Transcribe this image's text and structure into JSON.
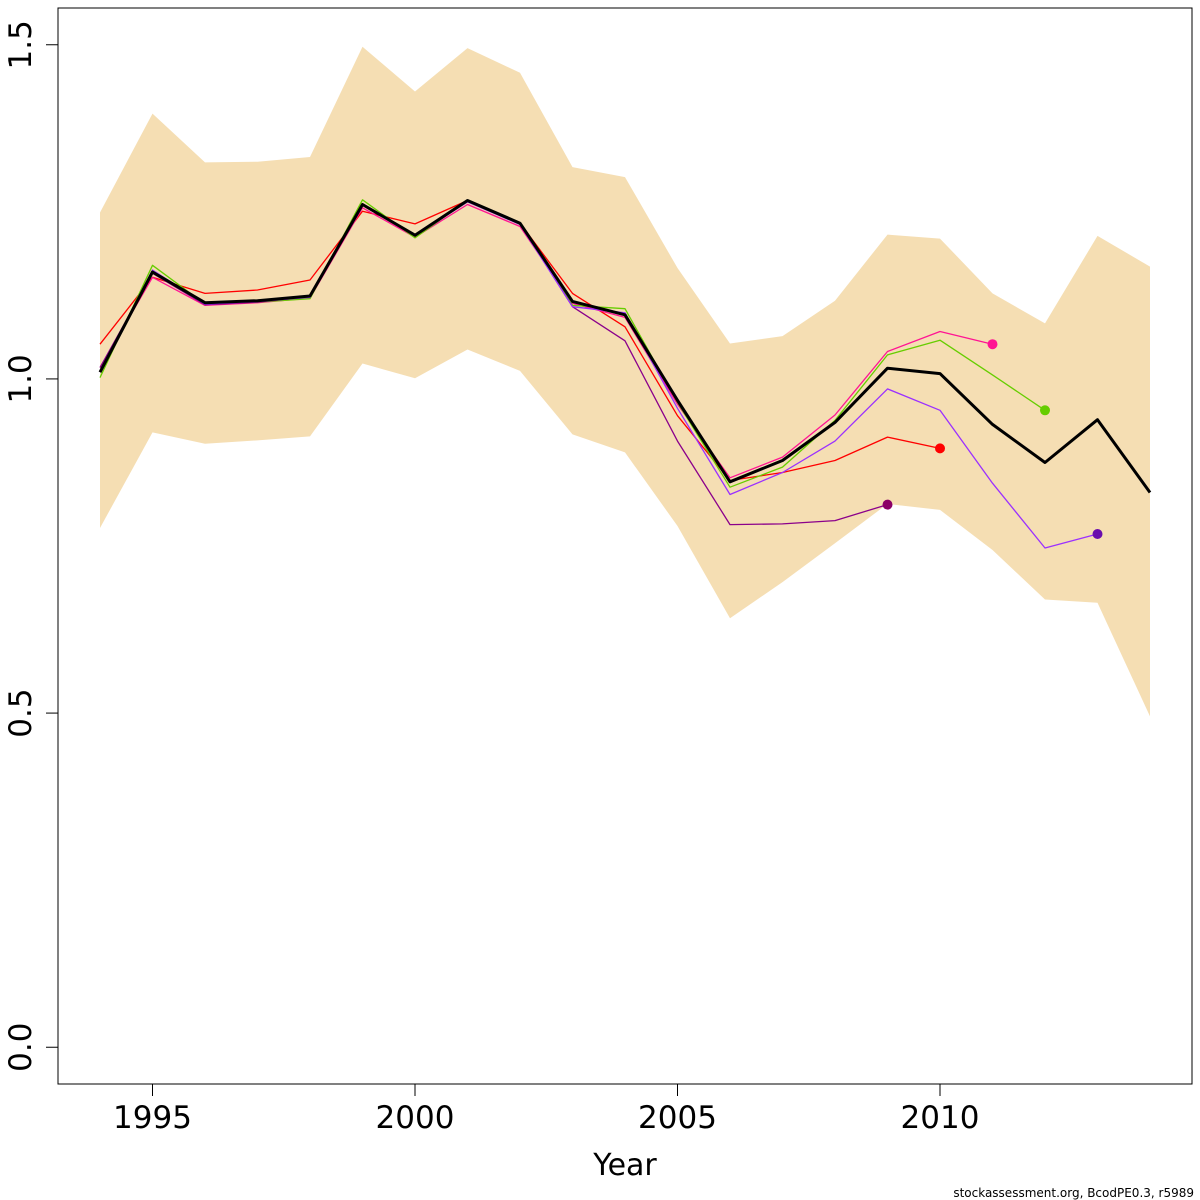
{
  "chart_data": {
    "type": "line",
    "xlabel": "Year",
    "ylabel": "",
    "xlim": [
      1993.2,
      2014.8
    ],
    "ylim": [
      -0.055,
      1.555
    ],
    "x_ticks": [
      1995,
      2000,
      2005,
      2010
    ],
    "x_tick_labels": [
      "1995",
      "2000",
      "2005",
      "2010"
    ],
    "y_ticks": [
      0,
      0.5,
      1,
      1.5
    ],
    "y_tick_labels": [
      "0.0",
      "0.5",
      "1.0",
      "1.5"
    ],
    "grid": false,
    "legend": "none",
    "band": {
      "color": "#F5DEB3",
      "x": [
        1994,
        1995,
        1996,
        1997,
        1998,
        1999,
        2000,
        2001,
        2002,
        2003,
        2004,
        2005,
        2006,
        2007,
        2008,
        2009,
        2010,
        2011,
        2012,
        2013,
        2014
      ],
      "upper": [
        1.249,
        1.397,
        1.324,
        1.325,
        1.332,
        1.497,
        1.43,
        1.495,
        1.458,
        1.317,
        1.302,
        1.166,
        1.053,
        1.064,
        1.117,
        1.216,
        1.21,
        1.128,
        1.083,
        1.214,
        1.168
      ],
      "lower": [
        0.777,
        0.92,
        0.903,
        0.908,
        0.914,
        1.023,
        1.001,
        1.044,
        1.012,
        0.917,
        0.89,
        0.78,
        0.642,
        0.696,
        0.754,
        0.813,
        0.804,
        0.744,
        0.67,
        0.665,
        0.495
      ]
    },
    "series": [
      {
        "color": "#000000",
        "width": 3,
        "x": [
          1994,
          1995,
          1996,
          1997,
          1998,
          1999,
          2000,
          2001,
          2002,
          2003,
          2004,
          2005,
          2006,
          2007,
          2008,
          2009,
          2010,
          2011,
          2012,
          2013,
          2014
        ],
        "values": [
          1.01,
          1.16,
          1.114,
          1.117,
          1.124,
          1.261,
          1.215,
          1.267,
          1.233,
          1.116,
          1.096,
          0.968,
          0.846,
          0.878,
          0.935,
          1.016,
          1.008,
          0.932,
          0.875,
          0.939,
          0.83
        ],
        "endpoint": false
      },
      {
        "color": "#FF0000",
        "width": 1.3,
        "x": [
          1994,
          1995,
          1996,
          1997,
          1998,
          1999,
          2000,
          2001,
          2002,
          2003,
          2004,
          2005,
          2006,
          2007,
          2008,
          2009,
          2010
        ],
        "values": [
          1.052,
          1.152,
          1.128,
          1.133,
          1.148,
          1.251,
          1.232,
          1.267,
          1.233,
          1.128,
          1.078,
          0.945,
          0.848,
          0.86,
          0.878,
          0.913,
          0.896
        ],
        "endpoint": true
      },
      {
        "color": "#FF1493",
        "width": 1.3,
        "x": [
          1994,
          1995,
          1996,
          1997,
          1998,
          1999,
          2000,
          2001,
          2002,
          2003,
          2004,
          2005,
          2006,
          2007,
          2008,
          2009,
          2010,
          2011
        ],
        "values": [
          1.017,
          1.152,
          1.11,
          1.114,
          1.121,
          1.256,
          1.212,
          1.261,
          1.228,
          1.113,
          1.092,
          0.962,
          0.852,
          0.883,
          0.946,
          1.041,
          1.071,
          1.052
        ],
        "endpoint": true
      },
      {
        "color": "#66CD00",
        "width": 1.3,
        "x": [
          1994,
          1995,
          1996,
          1997,
          1998,
          1999,
          2000,
          2001,
          2002,
          2003,
          2004,
          2005,
          2006,
          2007,
          2008,
          2009,
          2010,
          2011,
          2012
        ],
        "values": [
          1.002,
          1.17,
          1.112,
          1.115,
          1.12,
          1.268,
          1.211,
          1.267,
          1.234,
          1.11,
          1.105,
          0.965,
          0.838,
          0.868,
          0.938,
          1.036,
          1.058,
          1.006,
          0.953
        ],
        "endpoint": true
      },
      {
        "color": "#8B008B",
        "width": 1.3,
        "x": [
          1994,
          1995,
          1996,
          1997,
          1998,
          1999,
          2000,
          2001,
          2002,
          2003,
          2004,
          2005,
          2006,
          2007,
          2008,
          2009
        ],
        "values": [
          1.017,
          1.158,
          1.111,
          1.115,
          1.123,
          1.26,
          1.215,
          1.265,
          1.232,
          1.108,
          1.057,
          0.907,
          0.782,
          0.783,
          0.788,
          0.812
        ],
        "endpoint": true
      },
      {
        "color": "#9B30FF",
        "width": 1.3,
        "x": [
          1994,
          1995,
          1996,
          1997,
          1998,
          1999,
          2000,
          2001,
          2002,
          2003,
          2004,
          2005,
          2006,
          2007,
          2008,
          2009,
          2010,
          2011,
          2012,
          2013
        ],
        "values": [
          1.01,
          1.163,
          1.112,
          1.116,
          1.122,
          1.262,
          1.214,
          1.265,
          1.231,
          1.108,
          1.099,
          0.956,
          0.827,
          0.86,
          0.907,
          0.985,
          0.953,
          0.844,
          0.747,
          0.768
        ],
        "endpoint": true
      }
    ],
    "endpoint_colors": {
      "#FF0000": "#FF0000",
      "#FF1493": "#FF1493",
      "#66CD00": "#66CD00",
      "#8B008B": "#8B0066",
      "#9B30FF": "#6A0DAD"
    }
  },
  "credit": "stockassessment.org, BcodPE0.3, r5989"
}
